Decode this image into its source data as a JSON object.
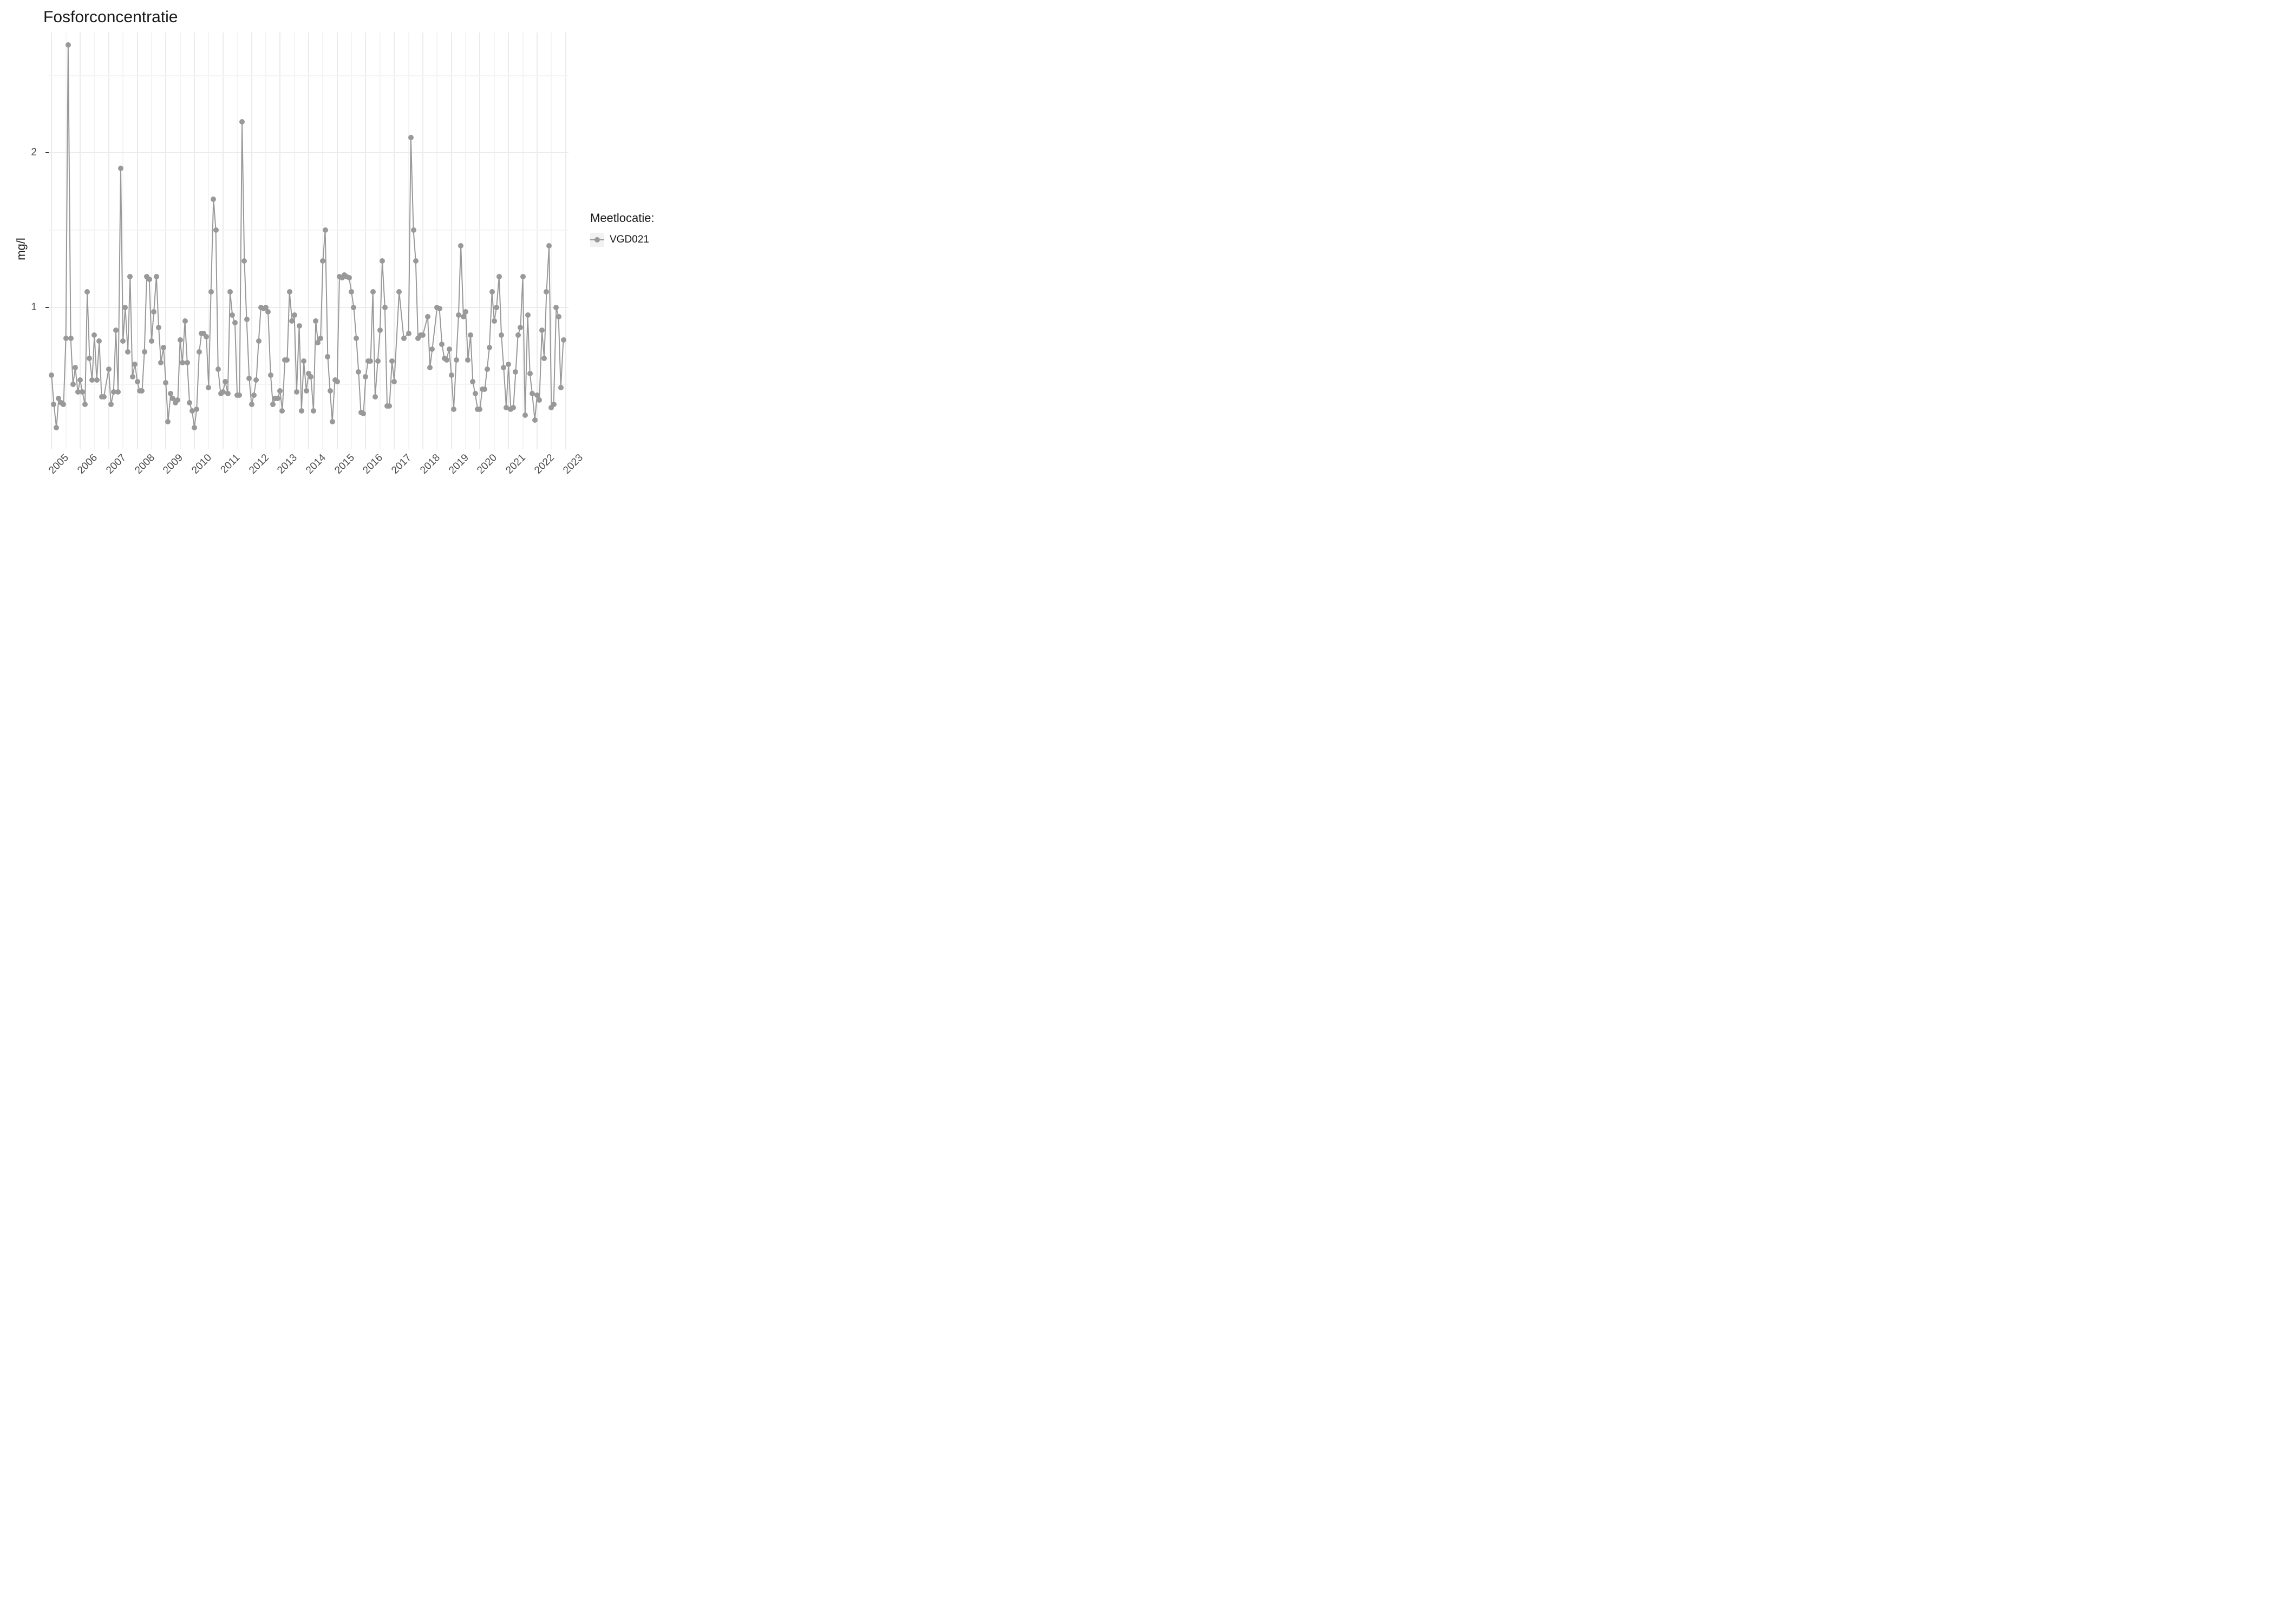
{
  "chart": {
    "type": "line",
    "title": "Fosforconcentratie",
    "ylabel": "mg/l",
    "legend_title": "Meetlocatie:",
    "series_name": "VGD021",
    "background_color": "#ffffff",
    "grid_major_color": "#ebebeb",
    "grid_minor_color": "#f4f4f4",
    "series_color": "#999999",
    "title_fontsize": 30,
    "axis_fontsize": 19,
    "ylabel_fontsize": 22,
    "point_size": 10,
    "line_width": 2,
    "x": {
      "min": 2004.9,
      "max": 2023.1,
      "tick_start": 2005,
      "tick_end": 2023,
      "tick_step": 1,
      "label_rotation": -45
    },
    "y": {
      "min": 0.08,
      "max": 2.78,
      "major_ticks": [
        1,
        2
      ],
      "minor_ticks": [
        0.5,
        1.5,
        2.5
      ]
    },
    "data": [
      [
        2005.0,
        0.56
      ],
      [
        2005.08,
        0.37
      ],
      [
        2005.17,
        0.22
      ],
      [
        2005.25,
        0.41
      ],
      [
        2005.33,
        0.38
      ],
      [
        2005.42,
        0.37
      ],
      [
        2005.5,
        0.8
      ],
      [
        2005.58,
        2.7
      ],
      [
        2005.67,
        0.8
      ],
      [
        2005.75,
        0.5
      ],
      [
        2005.83,
        0.61
      ],
      [
        2005.92,
        0.45
      ],
      [
        2006.0,
        0.53
      ],
      [
        2006.08,
        0.45
      ],
      [
        2006.17,
        0.37
      ],
      [
        2006.25,
        1.1
      ],
      [
        2006.33,
        0.67
      ],
      [
        2006.42,
        0.53
      ],
      [
        2006.5,
        0.82
      ],
      [
        2006.58,
        0.53
      ],
      [
        2006.67,
        0.78
      ],
      [
        2006.75,
        0.42
      ],
      [
        2006.83,
        0.42
      ],
      [
        2007.0,
        0.6
      ],
      [
        2007.08,
        0.37
      ],
      [
        2007.17,
        0.45
      ],
      [
        2007.25,
        0.85
      ],
      [
        2007.33,
        0.45
      ],
      [
        2007.42,
        1.9
      ],
      [
        2007.5,
        0.78
      ],
      [
        2007.58,
        1.0
      ],
      [
        2007.67,
        0.71
      ],
      [
        2007.75,
        1.2
      ],
      [
        2007.83,
        0.55
      ],
      [
        2007.92,
        0.63
      ],
      [
        2008.0,
        0.52
      ],
      [
        2008.08,
        0.46
      ],
      [
        2008.17,
        0.46
      ],
      [
        2008.25,
        0.71
      ],
      [
        2008.33,
        1.2
      ],
      [
        2008.42,
        1.18
      ],
      [
        2008.5,
        0.78
      ],
      [
        2008.58,
        0.97
      ],
      [
        2008.67,
        1.2
      ],
      [
        2008.75,
        0.87
      ],
      [
        2008.83,
        0.64
      ],
      [
        2008.92,
        0.74
      ],
      [
        2009.0,
        0.51
      ],
      [
        2009.08,
        0.26
      ],
      [
        2009.17,
        0.44
      ],
      [
        2009.25,
        0.41
      ],
      [
        2009.33,
        0.38
      ],
      [
        2009.42,
        0.4
      ],
      [
        2009.5,
        0.79
      ],
      [
        2009.58,
        0.64
      ],
      [
        2009.67,
        0.91
      ],
      [
        2009.75,
        0.64
      ],
      [
        2009.83,
        0.38
      ],
      [
        2009.92,
        0.33
      ],
      [
        2010.0,
        0.22
      ],
      [
        2010.08,
        0.34
      ],
      [
        2010.17,
        0.71
      ],
      [
        2010.25,
        0.83
      ],
      [
        2010.33,
        0.83
      ],
      [
        2010.42,
        0.81
      ],
      [
        2010.5,
        0.48
      ],
      [
        2010.58,
        1.1
      ],
      [
        2010.67,
        1.7
      ],
      [
        2010.75,
        1.5
      ],
      [
        2010.83,
        0.6
      ],
      [
        2010.92,
        0.44
      ],
      [
        2011.0,
        0.45
      ],
      [
        2011.08,
        0.52
      ],
      [
        2011.17,
        0.44
      ],
      [
        2011.25,
        1.1
      ],
      [
        2011.33,
        0.95
      ],
      [
        2011.42,
        0.9
      ],
      [
        2011.5,
        0.43
      ],
      [
        2011.58,
        0.43
      ],
      [
        2011.67,
        2.2
      ],
      [
        2011.75,
        1.3
      ],
      [
        2011.83,
        0.92
      ],
      [
        2011.92,
        0.54
      ],
      [
        2012.0,
        0.37
      ],
      [
        2012.08,
        0.43
      ],
      [
        2012.17,
        0.53
      ],
      [
        2012.25,
        0.78
      ],
      [
        2012.33,
        1.0
      ],
      [
        2012.42,
        0.99
      ],
      [
        2012.5,
        1.0
      ],
      [
        2012.58,
        0.97
      ],
      [
        2012.67,
        0.56
      ],
      [
        2012.75,
        0.37
      ],
      [
        2012.83,
        0.41
      ],
      [
        2012.92,
        0.41
      ],
      [
        2013.0,
        0.46
      ],
      [
        2013.08,
        0.33
      ],
      [
        2013.17,
        0.66
      ],
      [
        2013.25,
        0.66
      ],
      [
        2013.33,
        1.1
      ],
      [
        2013.42,
        0.91
      ],
      [
        2013.5,
        0.95
      ],
      [
        2013.58,
        0.45
      ],
      [
        2013.67,
        0.88
      ],
      [
        2013.75,
        0.33
      ],
      [
        2013.83,
        0.65
      ],
      [
        2013.92,
        0.46
      ],
      [
        2014.0,
        0.57
      ],
      [
        2014.08,
        0.55
      ],
      [
        2014.17,
        0.33
      ],
      [
        2014.25,
        0.91
      ],
      [
        2014.33,
        0.77
      ],
      [
        2014.42,
        0.8
      ],
      [
        2014.5,
        1.3
      ],
      [
        2014.58,
        1.5
      ],
      [
        2014.67,
        0.68
      ],
      [
        2014.75,
        0.46
      ],
      [
        2014.83,
        0.26
      ],
      [
        2014.92,
        0.53
      ],
      [
        2015.0,
        0.52
      ],
      [
        2015.08,
        1.2
      ],
      [
        2015.17,
        1.19
      ],
      [
        2015.25,
        1.21
      ],
      [
        2015.33,
        1.2
      ],
      [
        2015.42,
        1.19
      ],
      [
        2015.5,
        1.1
      ],
      [
        2015.58,
        1.0
      ],
      [
        2015.67,
        0.8
      ],
      [
        2015.75,
        0.58
      ],
      [
        2015.83,
        0.32
      ],
      [
        2015.92,
        0.31
      ],
      [
        2016.0,
        0.55
      ],
      [
        2016.08,
        0.65
      ],
      [
        2016.17,
        0.65
      ],
      [
        2016.25,
        1.1
      ],
      [
        2016.33,
        0.42
      ],
      [
        2016.42,
        0.65
      ],
      [
        2016.5,
        0.85
      ],
      [
        2016.58,
        1.3
      ],
      [
        2016.67,
        1.0
      ],
      [
        2016.75,
        0.36
      ],
      [
        2016.83,
        0.36
      ],
      [
        2016.92,
        0.65
      ],
      [
        2017.0,
        0.52
      ],
      [
        2017.17,
        1.1
      ],
      [
        2017.33,
        0.8
      ],
      [
        2017.5,
        0.83
      ],
      [
        2017.58,
        2.1
      ],
      [
        2017.67,
        1.5
      ],
      [
        2017.75,
        1.3
      ],
      [
        2017.83,
        0.8
      ],
      [
        2017.92,
        0.82
      ],
      [
        2018.0,
        0.82
      ],
      [
        2018.17,
        0.94
      ],
      [
        2018.25,
        0.61
      ],
      [
        2018.33,
        0.73
      ],
      [
        2018.5,
        1.0
      ],
      [
        2018.58,
        0.99
      ],
      [
        2018.67,
        0.76
      ],
      [
        2018.75,
        0.67
      ],
      [
        2018.83,
        0.66
      ],
      [
        2018.92,
        0.73
      ],
      [
        2019.0,
        0.56
      ],
      [
        2019.08,
        0.34
      ],
      [
        2019.17,
        0.66
      ],
      [
        2019.25,
        0.95
      ],
      [
        2019.33,
        1.4
      ],
      [
        2019.42,
        0.94
      ],
      [
        2019.5,
        0.97
      ],
      [
        2019.58,
        0.66
      ],
      [
        2019.67,
        0.82
      ],
      [
        2019.75,
        0.52
      ],
      [
        2019.83,
        0.44
      ],
      [
        2019.92,
        0.34
      ],
      [
        2020.0,
        0.34
      ],
      [
        2020.08,
        0.47
      ],
      [
        2020.17,
        0.47
      ],
      [
        2020.25,
        0.6
      ],
      [
        2020.33,
        0.74
      ],
      [
        2020.42,
        1.1
      ],
      [
        2020.5,
        0.91
      ],
      [
        2020.58,
        1.0
      ],
      [
        2020.67,
        1.2
      ],
      [
        2020.75,
        0.82
      ],
      [
        2020.83,
        0.61
      ],
      [
        2020.92,
        0.35
      ],
      [
        2021.0,
        0.63
      ],
      [
        2021.08,
        0.34
      ],
      [
        2021.17,
        0.35
      ],
      [
        2021.25,
        0.58
      ],
      [
        2021.33,
        0.82
      ],
      [
        2021.42,
        0.87
      ],
      [
        2021.5,
        1.2
      ],
      [
        2021.58,
        0.3
      ],
      [
        2021.67,
        0.95
      ],
      [
        2021.75,
        0.57
      ],
      [
        2021.83,
        0.44
      ],
      [
        2021.92,
        0.27
      ],
      [
        2022.0,
        0.43
      ],
      [
        2022.08,
        0.4
      ],
      [
        2022.17,
        0.85
      ],
      [
        2022.25,
        0.67
      ],
      [
        2022.33,
        1.1
      ],
      [
        2022.42,
        1.4
      ],
      [
        2022.5,
        0.35
      ],
      [
        2022.58,
        0.37
      ],
      [
        2022.67,
        1.0
      ],
      [
        2022.75,
        0.94
      ],
      [
        2022.83,
        0.48
      ],
      [
        2022.92,
        0.79
      ]
    ]
  }
}
